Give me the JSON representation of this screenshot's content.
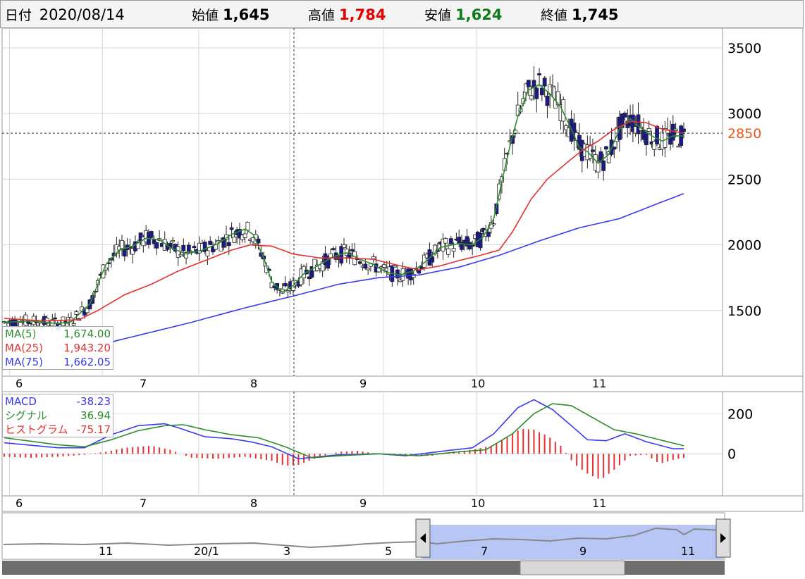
{
  "header": {
    "date_label": "日付",
    "date_value": "2020/08/14",
    "open_label": "始値",
    "open_value": "1,645",
    "high_label": "高値",
    "high_value": "1,784",
    "low_label": "安値",
    "low_value": "1,624",
    "close_label": "終値",
    "close_value": "1,745"
  },
  "legend_ma": [
    {
      "label": "MA(5)",
      "value": "1,674.00",
      "color": "#2e8b2e"
    },
    {
      "label": "MA(25)",
      "value": "1,943.20",
      "color": "#e53030"
    },
    {
      "label": "MA(75)",
      "value": "1,662.05",
      "color": "#3a3aee"
    }
  ],
  "legend_macd": [
    {
      "label": "MACD",
      "value": "-38.23",
      "color": "#3a3aee"
    },
    {
      "label": "シグナル",
      "value": "36.94",
      "color": "#2e8b2e"
    },
    {
      "label": "ヒストグラム",
      "value": "-75.17",
      "color": "#e53030"
    }
  ],
  "current_price_label": "2850",
  "navigator_labels": [
    "11",
    "20/1",
    "3",
    "5",
    "7",
    "9",
    "11"
  ],
  "chart_data": [
    {
      "type": "candlestick",
      "title": "",
      "y_ticks": [
        1500,
        2000,
        2500,
        3000,
        3500
      ],
      "ylim": [
        1000,
        3650
      ],
      "x_month_labels": [
        "6",
        "7",
        "8",
        "9",
        "10",
        "11"
      ],
      "current_price": 2850,
      "grid": true,
      "candle_colors": {
        "up": "#ffffff",
        "down": "#1a1a8c"
      },
      "ma_series": [
        {
          "name": "MA(5)",
          "color": "#2e8b2e",
          "points": [
            [
              0,
              1410
            ],
            [
              10,
              1420
            ],
            [
              20,
              1400
            ],
            [
              25,
              1415
            ],
            [
              32,
              1550
            ],
            [
              38,
              1850
            ],
            [
              43,
              1960
            ],
            [
              48,
              1990
            ],
            [
              53,
              2050
            ],
            [
              58,
              2040
            ],
            [
              62,
              1980
            ],
            [
              68,
              1930
            ],
            [
              74,
              1960
            ],
            [
              80,
              2010
            ],
            [
              85,
              2080
            ],
            [
              90,
              2120
            ],
            [
              93,
              2080
            ],
            [
              97,
              1900
            ],
            [
              100,
              1720
            ],
            [
              104,
              1640
            ],
            [
              108,
              1690
            ],
            [
              112,
              1780
            ],
            [
              118,
              1850
            ],
            [
              123,
              1910
            ],
            [
              128,
              1940
            ],
            [
              133,
              1890
            ],
            [
              138,
              1850
            ],
            [
              143,
              1790
            ],
            [
              148,
              1770
            ],
            [
              153,
              1800
            ],
            [
              158,
              1880
            ],
            [
              163,
              1980
            ],
            [
              170,
              2010
            ],
            [
              175,
              2000
            ],
            [
              179,
              2060
            ],
            [
              183,
              2200
            ],
            [
              186,
              2480
            ],
            [
              189,
              2750
            ],
            [
              192,
              2980
            ],
            [
              196,
              3180
            ],
            [
              200,
              3220
            ],
            [
              204,
              3150
            ],
            [
              208,
              3050
            ],
            [
              212,
              2880
            ],
            [
              215,
              2740
            ],
            [
              218,
              2710
            ],
            [
              222,
              2620
            ],
            [
              226,
              2690
            ],
            [
              230,
              2880
            ],
            [
              234,
              2960
            ],
            [
              238,
              2890
            ],
            [
              242,
              2830
            ],
            [
              246,
              2790
            ],
            [
              250,
              2830
            ],
            [
              254,
              2830
            ]
          ]
        },
        {
          "name": "MA(25)",
          "color": "#e53030",
          "points": [
            [
              0,
              1440
            ],
            [
              15,
              1420
            ],
            [
              28,
              1430
            ],
            [
              35,
              1500
            ],
            [
              45,
              1620
            ],
            [
              55,
              1700
            ],
            [
              65,
              1800
            ],
            [
              75,
              1880
            ],
            [
              85,
              1960
            ],
            [
              92,
              2000
            ],
            [
              100,
              1990
            ],
            [
              108,
              1930
            ],
            [
              118,
              1900
            ],
            [
              128,
              1900
            ],
            [
              138,
              1890
            ],
            [
              148,
              1840
            ],
            [
              155,
              1810
            ],
            [
              163,
              1840
            ],
            [
              170,
              1880
            ],
            [
              178,
              1920
            ],
            [
              185,
              1960
            ],
            [
              190,
              2100
            ],
            [
              197,
              2350
            ],
            [
              203,
              2500
            ],
            [
              210,
              2620
            ],
            [
              216,
              2720
            ],
            [
              222,
              2790
            ],
            [
              228,
              2880
            ],
            [
              234,
              2940
            ],
            [
              240,
              2930
            ],
            [
              246,
              2880
            ],
            [
              254,
              2850
            ]
          ]
        },
        {
          "name": "MA(75)",
          "color": "#3a3aee",
          "points": [
            [
              30,
              1210
            ],
            [
              50,
              1310
            ],
            [
              70,
              1410
            ],
            [
              90,
              1520
            ],
            [
              110,
              1620
            ],
            [
              125,
              1700
            ],
            [
              140,
              1750
            ],
            [
              155,
              1770
            ],
            [
              170,
              1830
            ],
            [
              185,
              1920
            ],
            [
              200,
              2030
            ],
            [
              215,
              2130
            ],
            [
              230,
              2200
            ],
            [
              245,
              2320
            ],
            [
              254,
              2390
            ]
          ]
        }
      ]
    },
    {
      "type": "macd",
      "y_ticks": [
        0,
        200
      ],
      "ylim": [
        -210,
        310
      ],
      "series": [
        {
          "name": "MACD",
          "color": "#3a3aee",
          "points": [
            [
              0,
              55
            ],
            [
              20,
              30
            ],
            [
              30,
              30
            ],
            [
              40,
              95
            ],
            [
              50,
              140
            ],
            [
              60,
              150
            ],
            [
              65,
              130
            ],
            [
              75,
              85
            ],
            [
              85,
              75
            ],
            [
              92,
              60
            ],
            [
              100,
              35
            ],
            [
              110,
              -25
            ],
            [
              125,
              -5
            ],
            [
              140,
              0
            ],
            [
              150,
              -10
            ],
            [
              165,
              15
            ],
            [
              175,
              30
            ],
            [
              183,
              100
            ],
            [
              192,
              230
            ],
            [
              198,
              270
            ],
            [
              205,
              220
            ],
            [
              212,
              140
            ],
            [
              218,
              70
            ],
            [
              225,
              65
            ],
            [
              232,
              100
            ],
            [
              240,
              60
            ],
            [
              250,
              25
            ],
            [
              254,
              25
            ]
          ]
        },
        {
          "name": "シグナル",
          "color": "#2e8b2e",
          "points": [
            [
              0,
              80
            ],
            [
              20,
              45
            ],
            [
              30,
              35
            ],
            [
              40,
              70
            ],
            [
              50,
              115
            ],
            [
              60,
              140
            ],
            [
              67,
              145
            ],
            [
              75,
              120
            ],
            [
              85,
              95
            ],
            [
              95,
              80
            ],
            [
              105,
              35
            ],
            [
              115,
              -20
            ],
            [
              125,
              -10
            ],
            [
              140,
              0
            ],
            [
              155,
              -10
            ],
            [
              170,
              10
            ],
            [
              180,
              20
            ],
            [
              190,
              100
            ],
            [
              198,
              200
            ],
            [
              205,
              250
            ],
            [
              212,
              240
            ],
            [
              220,
              180
            ],
            [
              228,
              120
            ],
            [
              236,
              100
            ],
            [
              245,
              70
            ],
            [
              254,
              40
            ]
          ]
        },
        {
          "name": "ヒストグラム",
          "color": "#e53030",
          "points": [
            [
              0,
              -15
            ],
            [
              10,
              -20
            ],
            [
              20,
              -15
            ],
            [
              30,
              -5
            ],
            [
              38,
              10
            ],
            [
              45,
              30
            ],
            [
              55,
              40
            ],
            [
              62,
              20
            ],
            [
              70,
              -20
            ],
            [
              80,
              -25
            ],
            [
              90,
              -15
            ],
            [
              100,
              -35
            ],
            [
              105,
              -60
            ],
            [
              110,
              -55
            ],
            [
              117,
              -20
            ],
            [
              125,
              10
            ],
            [
              132,
              15
            ],
            [
              140,
              0
            ],
            [
              150,
              -10
            ],
            [
              160,
              -10
            ],
            [
              168,
              10
            ],
            [
              175,
              20
            ],
            [
              182,
              40
            ],
            [
              188,
              80
            ],
            [
              193,
              125
            ],
            [
              198,
              120
            ],
            [
              203,
              90
            ],
            [
              208,
              40
            ],
            [
              213,
              -50
            ],
            [
              218,
              -100
            ],
            [
              223,
              -130
            ],
            [
              228,
              -80
            ],
            [
              234,
              -10
            ],
            [
              240,
              -5
            ],
            [
              245,
              -50
            ],
            [
              250,
              -30
            ],
            [
              254,
              -20
            ]
          ]
        }
      ]
    }
  ]
}
